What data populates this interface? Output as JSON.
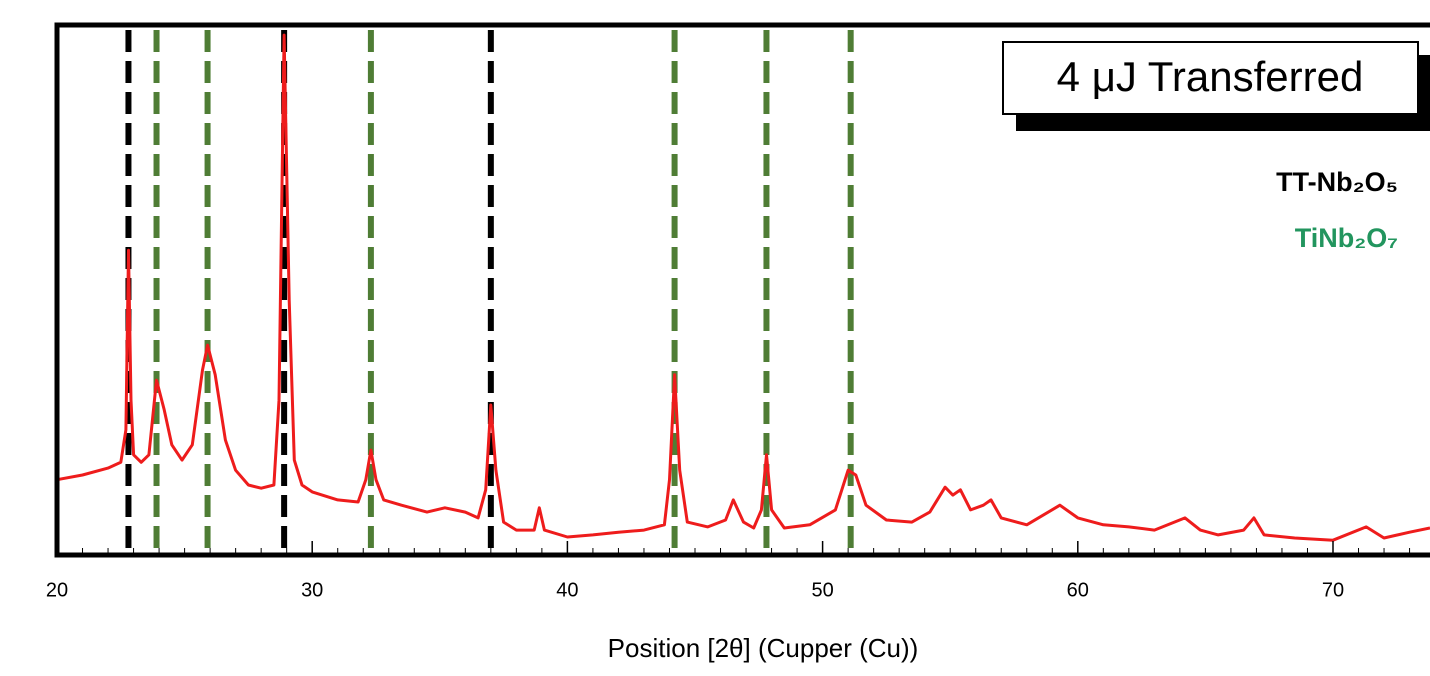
{
  "chart_data": {
    "type": "line",
    "annotation": "4 μJ Transferred",
    "x_label": "Position [2θ] (Cupper (Cu))",
    "xlim": [
      20,
      73.8
    ],
    "ylim": [
      0,
      100
    ],
    "xticks": [
      20,
      30,
      40,
      50,
      60,
      70
    ],
    "xminorticks": [
      21,
      22,
      23,
      24,
      25,
      26,
      27,
      28,
      29,
      31,
      32,
      33,
      34,
      35,
      36,
      37,
      38,
      39,
      41,
      42,
      43,
      44,
      45,
      46,
      47,
      48,
      49,
      51,
      52,
      53,
      54,
      55,
      56,
      57,
      58,
      59,
      61,
      62,
      63,
      64,
      65,
      66,
      67,
      68,
      69,
      71,
      72,
      73
    ],
    "x": [
      20,
      21,
      22,
      22.5,
      22.7,
      22.8,
      22.9,
      23.0,
      23.3,
      23.6,
      23.9,
      24.2,
      24.5,
      24.9,
      25.3,
      25.7,
      25.9,
      26.2,
      26.6,
      27,
      27.5,
      28,
      28.5,
      28.7,
      28.9,
      29.1,
      29.3,
      29.6,
      30,
      31,
      31.8,
      32.1,
      32.3,
      32.5,
      32.8,
      33.5,
      34.5,
      35.2,
      36,
      36.5,
      36.8,
      37.0,
      37.2,
      37.5,
      38,
      38.7,
      38.9,
      39.1,
      40,
      41,
      42,
      43,
      43.8,
      44.0,
      44.2,
      44.4,
      44.7,
      45.5,
      46.2,
      46.5,
      46.9,
      47.3,
      47.6,
      47.8,
      48.0,
      48.5,
      49.5,
      50.5,
      51.0,
      51.3,
      51.7,
      52.5,
      53.5,
      54.2,
      54.8,
      55.1,
      55.4,
      55.8,
      56.3,
      56.6,
      57.0,
      58.0,
      59.3,
      60.0,
      61,
      62,
      63,
      64.2,
      64.8,
      65.5,
      66.5,
      66.9,
      67.3,
      68.5,
      70,
      71.3,
      72,
      73,
      73.8
    ],
    "series": [
      {
        "color": "#ee1c1c",
        "values": [
          14.2,
          15.1,
          16.4,
          17.5,
          23.6,
          57.5,
          29.2,
          18.9,
          17.5,
          18.9,
          33.0,
          27.4,
          20.8,
          17.9,
          20.8,
          34.9,
          39.6,
          34.0,
          21.7,
          16.0,
          13.2,
          12.6,
          13.2,
          29.2,
          98.1,
          48.1,
          17.9,
          13.2,
          11.9,
          10.4,
          10.0,
          14.2,
          19.8,
          14.2,
          10.4,
          9.4,
          8.1,
          8.9,
          8.1,
          7.0,
          12.3,
          28.3,
          16.0,
          6.2,
          4.7,
          4.7,
          8.9,
          4.7,
          3.4,
          3.8,
          4.3,
          4.7,
          5.7,
          14.2,
          34.0,
          16.0,
          6.2,
          5.3,
          6.6,
          10.4,
          6.2,
          5.1,
          8.5,
          18.9,
          8.5,
          5.1,
          5.7,
          8.5,
          16.0,
          15.1,
          9.4,
          6.6,
          6.2,
          8.1,
          12.8,
          11.3,
          12.3,
          8.5,
          9.4,
          10.4,
          7.0,
          5.7,
          9.4,
          7.0,
          5.7,
          5.3,
          4.7,
          7.0,
          4.7,
          3.8,
          4.7,
          7.0,
          3.8,
          3.2,
          2.8,
          5.3,
          3.2,
          4.3,
          5.1
        ]
      }
    ],
    "references": [
      {
        "name": "TT-Nb₂O₅",
        "color": "#000000",
        "label_color": "#000000",
        "positions": [
          22.8,
          28.9,
          37.0
        ]
      },
      {
        "name": "TiNb₂O₇",
        "color": "#4f7d35",
        "label_color": "#22955e",
        "positions": [
          23.9,
          25.9,
          32.3,
          44.2,
          47.8,
          51.1
        ]
      }
    ]
  }
}
